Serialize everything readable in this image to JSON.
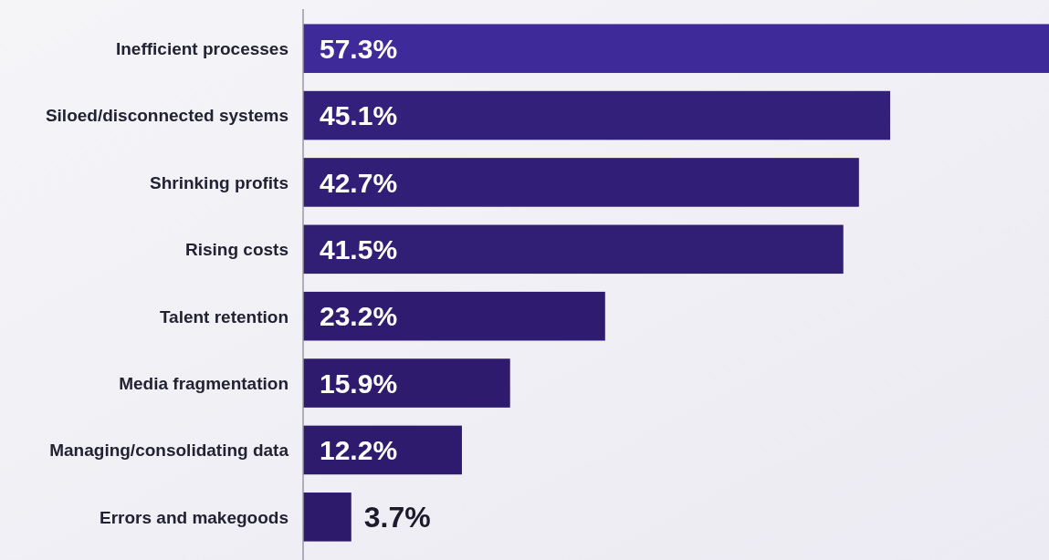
{
  "chart_data": {
    "type": "bar",
    "orientation": "horizontal",
    "data_labels": true,
    "value_labels": [
      "57.3%",
      "45.1%",
      "42.7%",
      "41.5%",
      "23.2%",
      "15.9%",
      "12.2%",
      "3.7%"
    ],
    "categories": [
      "Inefficient processes",
      "Siloed/disconnected systems",
      "Shrinking profits",
      "Rising costs",
      "Talent retention",
      "Media fragmentation",
      "Managing/consolidating data",
      "Errors and makegoods"
    ],
    "values": [
      57.3,
      45.1,
      42.7,
      41.5,
      23.2,
      15.9,
      12.2,
      3.7
    ],
    "colors": [
      "#3f2a9a",
      "#33207a",
      "#311e76",
      "#311e75",
      "#2f1c71",
      "#2e1b6e",
      "#2e1b6d",
      "#2d1a6b"
    ]
  }
}
